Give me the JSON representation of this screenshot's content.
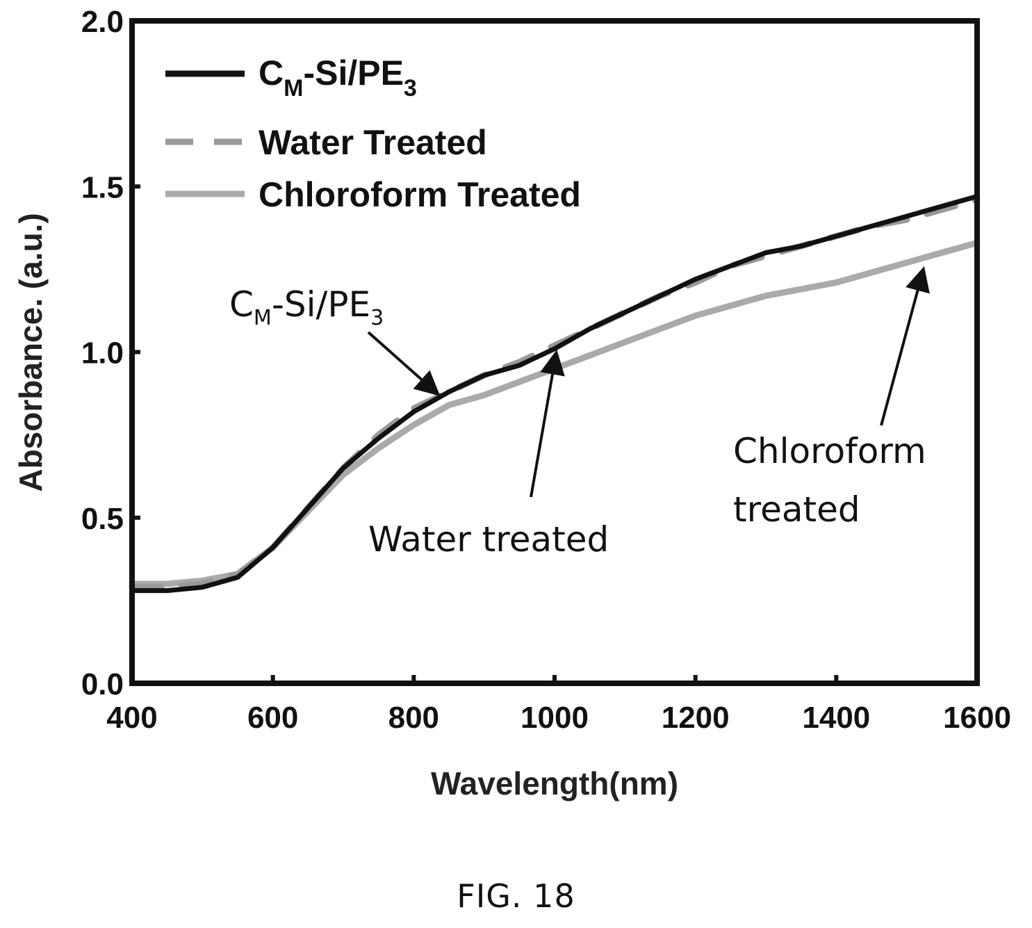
{
  "figure_caption": "FIG. 18",
  "chart_data": {
    "type": "line",
    "xlabel": "Wavelength(nm)",
    "ylabel": "Absorbance. (a.u.)",
    "xlim": [
      400,
      1600
    ],
    "ylim": [
      0.0,
      2.0
    ],
    "xticks": [
      "400",
      "600",
      "800",
      "1000",
      "1200",
      "1400",
      "1600"
    ],
    "yticks": [
      "0.0",
      "0.5",
      "1.0",
      "1.5",
      "2.0"
    ],
    "grid": false,
    "legend_position": "top-left",
    "series": [
      {
        "name": "CM-Si/PE3",
        "name_parts": [
          "C",
          "M",
          "-Si/PE",
          "3"
        ],
        "color": "#111111",
        "style": "solid",
        "x": [
          400,
          450,
          500,
          550,
          600,
          650,
          700,
          750,
          800,
          850,
          900,
          950,
          1000,
          1050,
          1100,
          1150,
          1200,
          1250,
          1300,
          1350,
          1400,
          1450,
          1500,
          1550,
          1600
        ],
        "y": [
          0.28,
          0.28,
          0.29,
          0.32,
          0.41,
          0.53,
          0.65,
          0.74,
          0.82,
          0.88,
          0.93,
          0.96,
          1.01,
          1.07,
          1.12,
          1.17,
          1.22,
          1.26,
          1.3,
          1.32,
          1.35,
          1.38,
          1.41,
          1.44,
          1.47
        ]
      },
      {
        "name": "Water Treated",
        "color": "#999999",
        "style": "dashed",
        "x": [
          400,
          450,
          500,
          550,
          600,
          650,
          700,
          750,
          800,
          850,
          900,
          950,
          1000,
          1050,
          1100,
          1150,
          1200,
          1250,
          1300,
          1350,
          1400,
          1450,
          1500,
          1550,
          1600
        ],
        "y": [
          0.29,
          0.29,
          0.3,
          0.33,
          0.41,
          0.53,
          0.65,
          0.75,
          0.83,
          0.88,
          0.93,
          0.97,
          1.02,
          1.07,
          1.12,
          1.17,
          1.21,
          1.26,
          1.29,
          1.32,
          1.35,
          1.38,
          1.4,
          1.43,
          1.46
        ]
      },
      {
        "name": "Chloroform Treated",
        "color": "#aaaaaa",
        "style": "solid",
        "x": [
          400,
          450,
          500,
          550,
          600,
          650,
          700,
          750,
          800,
          850,
          900,
          950,
          1000,
          1050,
          1100,
          1150,
          1200,
          1250,
          1300,
          1350,
          1400,
          1450,
          1500,
          1550,
          1600
        ],
        "y": [
          0.3,
          0.3,
          0.31,
          0.33,
          0.41,
          0.52,
          0.63,
          0.71,
          0.78,
          0.84,
          0.87,
          0.91,
          0.95,
          0.99,
          1.03,
          1.07,
          1.11,
          1.14,
          1.17,
          1.19,
          1.21,
          1.24,
          1.27,
          1.3,
          1.33
        ]
      }
    ],
    "annotations": [
      {
        "text_parts": [
          "C",
          "M",
          "-Si/PE",
          "3"
        ],
        "points_to_series": 0,
        "points_to_x": 840
      },
      {
        "text": "Water treated",
        "points_to_series": 1,
        "points_to_x": 1005
      },
      {
        "text_lines": [
          "Chloroform",
          "treated"
        ],
        "points_to_series": 2,
        "points_to_x": 1520
      }
    ]
  }
}
